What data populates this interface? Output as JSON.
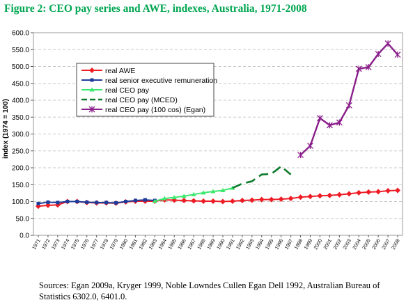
{
  "figure": {
    "title": "Figure 2: CEO pay series and AWE, indexes, Australia, 1971-2008",
    "source": "Sources: Egan 2009a, Kryger 1999, Noble Lowndes Cullen Egan Dell 1992, Australian Bureau of Statistics 6302.0, 6401.0."
  },
  "chart_data": {
    "type": "line",
    "ylabel": "index (1974 = 100)",
    "xlabel": "",
    "ylim": [
      0,
      600
    ],
    "yticks": [
      "0.0",
      "50.0",
      "100.0",
      "150.0",
      "200.0",
      "250.0",
      "300.0",
      "350.0",
      "400.0",
      "450.0",
      "500.0",
      "550.0",
      "600.0"
    ],
    "x": [
      "1971",
      "1972",
      "1973",
      "1974",
      "1975",
      "1976",
      "1977",
      "1978",
      "1979",
      "1980",
      "1981",
      "1982",
      "1983",
      "1984",
      "1985",
      "1986",
      "1987",
      "1988",
      "1989",
      "1990",
      "1991",
      "1992",
      "1993",
      "1994",
      "1995",
      "1996",
      "1997",
      "1998",
      "1999",
      "2000",
      "2001",
      "2002",
      "2003",
      "2004",
      "2005",
      "2006",
      "2007",
      "2008"
    ],
    "grid": "horizontal dashed",
    "legend_position": "upper-left",
    "series": [
      {
        "name": "real AWE",
        "color": "#ee1c24",
        "marker": "diamond",
        "values": [
          86,
          89,
          90,
          100,
          100,
          97,
          96,
          96,
          95,
          99,
          101,
          101,
          101,
          105,
          104,
          103,
          102,
          101,
          101,
          100,
          101,
          103,
          104,
          106,
          106,
          107,
          109,
          113,
          115,
          117,
          118,
          120,
          123,
          126,
          128,
          129,
          132,
          133
        ]
      },
      {
        "name": "real senior executive remuneration",
        "color": "#1f3b9a",
        "marker": "square",
        "values": [
          94,
          98,
          97,
          100,
          100,
          98,
          97,
          97,
          96,
          100,
          103,
          105,
          103,
          null,
          null,
          null,
          null,
          null,
          null,
          null,
          null,
          null,
          null,
          null,
          null,
          null,
          null,
          null,
          null,
          null,
          null,
          null,
          null,
          null,
          null,
          null,
          null,
          null
        ]
      },
      {
        "name": "real CEO pay",
        "color": "#3ee86f",
        "marker": "triangle",
        "values": [
          null,
          null,
          null,
          null,
          null,
          null,
          null,
          null,
          null,
          null,
          null,
          null,
          101,
          109,
          112,
          116,
          121,
          126,
          130,
          133,
          140,
          null,
          null,
          null,
          null,
          null,
          null,
          null,
          null,
          null,
          null,
          null,
          null,
          null,
          null,
          null,
          null,
          null
        ]
      },
      {
        "name": "real CEO pay (MCED)",
        "color": "#0d7a2b",
        "marker": "none",
        "values": [
          null,
          null,
          null,
          null,
          null,
          null,
          null,
          null,
          null,
          null,
          null,
          null,
          null,
          null,
          null,
          null,
          null,
          null,
          null,
          null,
          140,
          153,
          160,
          180,
          182,
          204,
          180,
          null,
          null,
          null,
          null,
          null,
          null,
          null,
          null,
          null,
          null,
          null
        ]
      },
      {
        "name": "real CEO pay (100 cos) (Egan)",
        "color": "#8a1e8a",
        "marker": "star",
        "values": [
          null,
          null,
          null,
          null,
          null,
          null,
          null,
          null,
          null,
          null,
          null,
          null,
          null,
          null,
          null,
          null,
          null,
          null,
          null,
          null,
          null,
          null,
          null,
          null,
          null,
          null,
          null,
          238,
          265,
          347,
          326,
          334,
          385,
          493,
          498,
          537,
          568,
          535
        ]
      }
    ]
  }
}
